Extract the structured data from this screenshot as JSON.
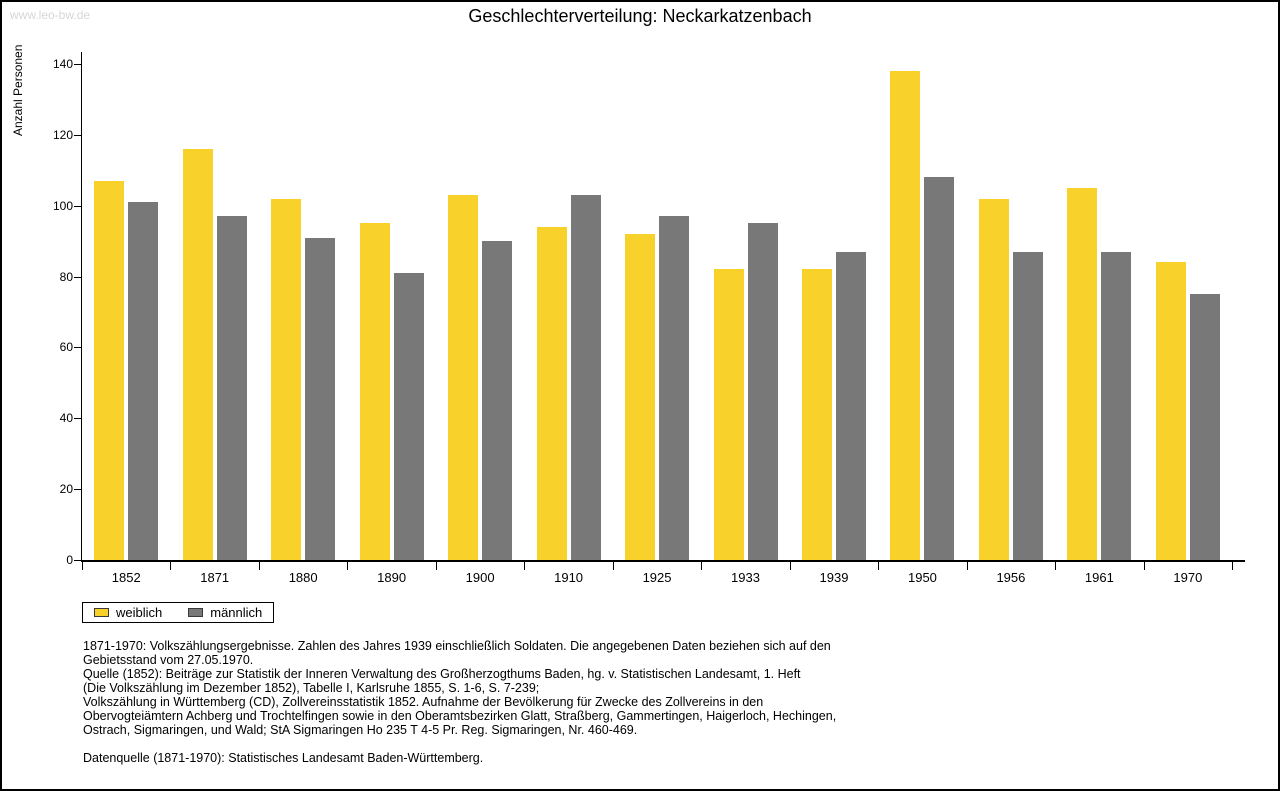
{
  "watermark": "www.leo-bw.de",
  "title": "Geschlechterverteilung: Neckarkatzenbach",
  "chart_data": {
    "type": "bar",
    "title": "Geschlechterverteilung: Neckarkatzenbach",
    "xlabel": "",
    "ylabel": "Anzahl Personen",
    "ylim": [
      0,
      140
    ],
    "ytick_step": 20,
    "grid": false,
    "legend_position": "bottom-left",
    "categories": [
      "1852",
      "1871",
      "1880",
      "1890",
      "1900",
      "1910",
      "1925",
      "1933",
      "1939",
      "1950",
      "1956",
      "1961",
      "1970"
    ],
    "series": [
      {
        "name": "weiblich",
        "color": "#F8D12A",
        "values": [
          107,
          116,
          102,
          95,
          103,
          94,
          92,
          82,
          82,
          138,
          102,
          105,
          84
        ]
      },
      {
        "name": "männlich",
        "color": "#787878",
        "values": [
          101,
          97,
          91,
          81,
          90,
          103,
          97,
          95,
          87,
          108,
          87,
          87,
          75
        ]
      }
    ]
  },
  "footnotes": {
    "lines": [
      "1871-1970: Volkszählungsergebnisse. Zahlen des Jahres 1939 einschließlich Soldaten. Die angegebenen Daten beziehen sich auf den",
      "Gebietsstand vom 27.05.1970.",
      "Quelle (1852): Beiträge zur Statistik der Inneren Verwaltung des Großherzogthums Baden, hg. v. Statistischen Landesamt, 1. Heft",
      "(Die Volkszählung im Dezember 1852), Tabelle I, Karlsruhe 1855, S. 1-6, S. 7-239;",
      "Volkszählung in Württemberg (CD), Zollvereinsstatistik 1852. Aufnahme der Bevölkerung für Zwecke des Zollvereins in den",
      "Obervogteiämtern Achberg und Trochtelfingen sowie in den Oberamtsbezirken Glatt, Straßberg, Gammertingen, Haigerloch, Hechingen,",
      "Ostrach, Sigmaringen, und Wald; StA Sigmaringen Ho 235 T 4-5 Pr. Reg. Sigmaringen, Nr. 460-469.",
      "",
      "Datenquelle (1871-1970): Statistisches Landesamt Baden-Württemberg."
    ]
  }
}
